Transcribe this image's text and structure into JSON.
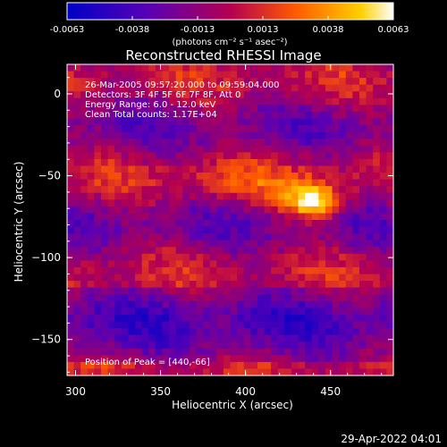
{
  "chart_data": {
    "type": "heatmap",
    "title": "Reconstructed RHESSI Image",
    "xlabel": "Heliocentric X (arcsec)",
    "ylabel": "Heliocentric Y (arcsec)",
    "xlim": [
      295,
      487
    ],
    "ylim": [
      -172,
      18
    ],
    "x_ticks": [
      300,
      350,
      400,
      450
    ],
    "y_ticks": [
      0,
      -50,
      -100,
      -150
    ],
    "colorbar": {
      "ticks": [
        "-0.0063",
        "-0.0038",
        "-0.0013",
        "0.0013",
        "0.0038",
        "0.0063"
      ],
      "range": [
        -0.0063,
        0.0063
      ],
      "unit_label": "(photons cm⁻² s⁻¹ asec⁻²)"
    },
    "annotations": [
      "26-Mar-2005 09:57:20.000 to 09:59:04.000",
      "Detectors: 3F 4F 5F 6F 7F 8F, Att 0",
      "Energy Range: 6.0 - 12.0 keV",
      "Clean     Total counts: 1.17E+04"
    ],
    "peak_text": "Position of Peak = [440,-66]",
    "peak": {
      "x": 440,
      "y": -66,
      "value": 0.0063
    }
  },
  "footer": {
    "timestamp": "29-Apr-2022 04:01"
  }
}
